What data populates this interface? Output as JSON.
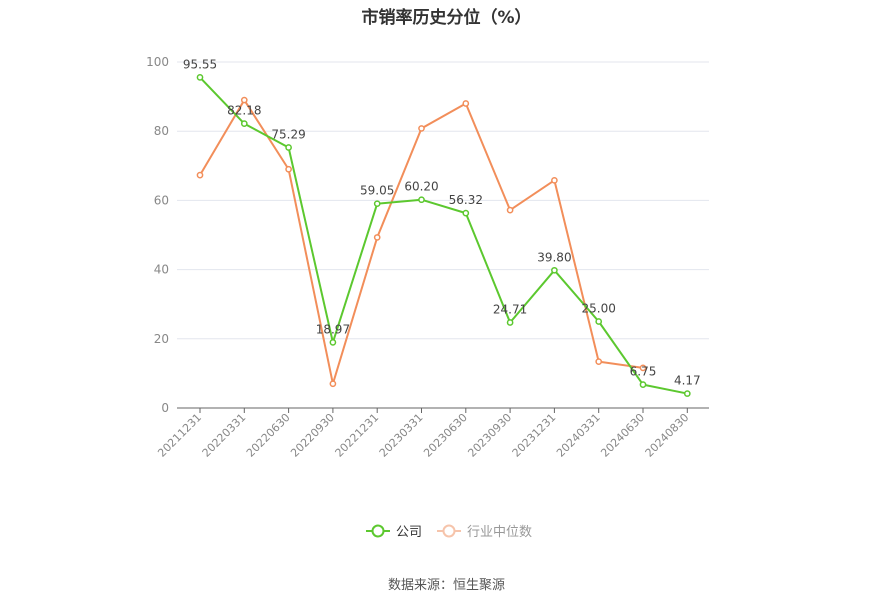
{
  "chart_data": {
    "type": "line",
    "title": "市销率历史分位（%）",
    "categories": [
      "20211231",
      "20220331",
      "20220630",
      "20220930",
      "20221231",
      "20230331",
      "20230630",
      "20230930",
      "20231231",
      "20240331",
      "20240630",
      "20240830"
    ],
    "ylim": [
      0,
      100
    ],
    "yticks": [
      0,
      20,
      40,
      60,
      80,
      100
    ],
    "grid": true,
    "legend_position": "bottom",
    "series": [
      {
        "name": "公司",
        "color": "#5cc82f",
        "values": [
          95.55,
          82.18,
          75.29,
          18.97,
          59.05,
          60.2,
          56.32,
          24.71,
          39.8,
          25.0,
          6.75,
          4.17
        ],
        "labels": [
          "95.55",
          "82.18",
          "75.29",
          "18.97",
          "59.05",
          "60.20",
          "56.32",
          "24.71",
          "39.80",
          "25.00",
          "6.75",
          "4.17"
        ]
      },
      {
        "name": "行业中位数",
        "color": "#f28e5a",
        "values": [
          67.3,
          89.0,
          69.0,
          7.0,
          49.3,
          80.8,
          88.0,
          57.2,
          65.8,
          13.4,
          11.6,
          null
        ]
      }
    ]
  },
  "source": "数据来源：恒生聚源"
}
